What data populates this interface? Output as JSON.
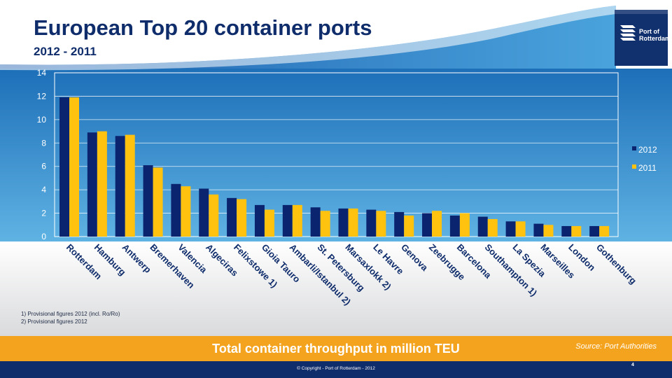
{
  "header": {
    "title": "European Top 20 container ports",
    "subtitle": "2012 - 2011"
  },
  "logo": {
    "text_line1": "Port of",
    "text_line2": "Rotterdam",
    "icon": "port-of-rotterdam-logo-icon"
  },
  "footnotes": {
    "line1": "1) Provisional figures 2012 (incl.  Ro/Ro)",
    "line2": "2) Provisional figures 2012"
  },
  "banner": {
    "title": "Total container throughput in million TEU",
    "source": "Source: Port Authorities"
  },
  "footer": {
    "copyright": "© Copyright - Port of Rotterdam - 2012",
    "page_number": "4"
  },
  "colors": {
    "navy": "#0f2c6b",
    "series_2012": "#0a2470",
    "series_2011": "#ffc20e",
    "orange_banner": "#f4a31f",
    "plot_top": "#1d6fb8",
    "plot_bottom": "#5fb3e3"
  },
  "chart_data": {
    "type": "bar",
    "categories": [
      "Rotterdam",
      "Hamburg",
      "Antwerp",
      "Bremerhaven",
      "Valencia",
      "Algeciras",
      "Felixstowe 1)",
      "Gioia Tauro",
      "Ambarli/Istanbul 2)",
      "St. Petersburg",
      "Marsaxlokk 2)",
      "Le Havre",
      "Genova",
      "Zeebrugge",
      "Barcelona",
      "Southampton 1)",
      "La Spezia",
      "Marseilles",
      "London",
      "Gothenburg"
    ],
    "series": [
      {
        "name": "2012",
        "color": "#0a2470",
        "values": [
          11.9,
          8.9,
          8.6,
          6.1,
          4.5,
          4.1,
          3.3,
          2.7,
          2.7,
          2.5,
          2.4,
          2.3,
          2.1,
          2.0,
          1.8,
          1.7,
          1.3,
          1.1,
          0.9,
          0.9
        ]
      },
      {
        "name": "2011",
        "color": "#ffc20e",
        "values": [
          11.9,
          9.0,
          8.7,
          5.9,
          4.3,
          3.6,
          3.2,
          2.3,
          2.7,
          2.2,
          2.4,
          2.2,
          1.8,
          2.2,
          2.0,
          1.5,
          1.3,
          1.0,
          0.9,
          0.9
        ]
      }
    ],
    "yticks": [
      0,
      2,
      4,
      6,
      8,
      10,
      12,
      14
    ],
    "ylim": [
      0,
      14
    ],
    "grid": true,
    "legend_position": "right"
  }
}
